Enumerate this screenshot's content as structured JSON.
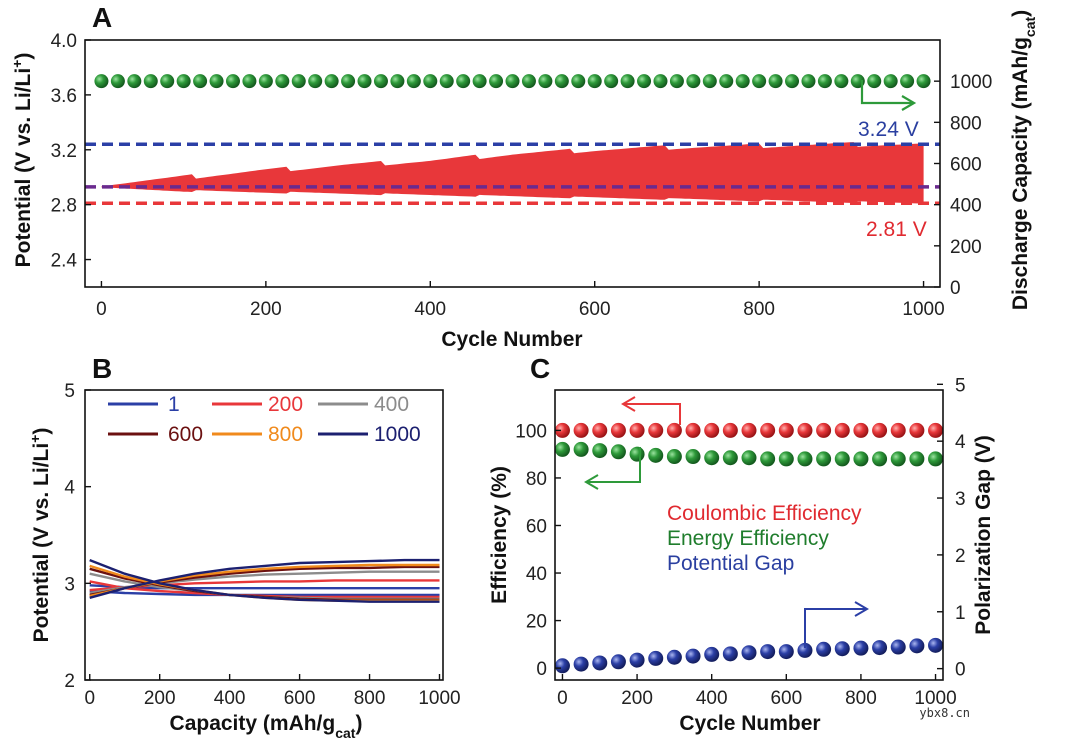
{
  "colors": {
    "green": "#2e9a3a",
    "red": "#e8373a",
    "blue": "#2b3fa6",
    "purple": "#6a2a8e",
    "gray": "#8c8c8c",
    "darkred": "#6b1010",
    "orange": "#f08a1c",
    "navy": "#1c2070",
    "green_text": "#1f7d2c",
    "blue_text": "#2a3fa0",
    "red_text": "#e02a30"
  },
  "watermark": "ybx8.cn",
  "chart_data": [
    {
      "id": "A",
      "panel_label": "A",
      "type": "scatter",
      "xlabel": "Cycle Number",
      "ylabel_left": "Potential (V vs. Li/Li+)",
      "ylabel_right": "Discharge Capacity (mAh/gcat)",
      "xlim": [
        -20,
        1020
      ],
      "ylim_left": [
        2.2,
        4.0
      ],
      "ylim_right": [
        0,
        1200
      ],
      "xticks": [
        "0",
        "200",
        "400",
        "600",
        "800",
        "1000"
      ],
      "yticks_left": [
        "2.4",
        "2.8",
        "3.2",
        "3.6",
        "4.0"
      ],
      "yticks_right": [
        "0",
        "200",
        "400",
        "600",
        "800",
        "1000"
      ],
      "series": [
        {
          "name": "Discharge Capacity",
          "axis": "right",
          "x_start": 0,
          "x_step": 20,
          "count": 51,
          "y": 1000
        }
      ],
      "band": {
        "name": "Potential range",
        "x": [
          0,
          100,
          200,
          300,
          400,
          500,
          600,
          700,
          800,
          900,
          1000
        ],
        "upper": [
          2.95,
          3.0,
          3.05,
          3.09,
          3.12,
          3.17,
          3.2,
          3.22,
          3.23,
          3.24,
          3.24
        ],
        "lower": [
          2.92,
          2.9,
          2.89,
          2.88,
          2.87,
          2.86,
          2.85,
          2.84,
          2.83,
          2.82,
          2.81
        ]
      },
      "hlines": [
        {
          "name": "upper",
          "y": 3.24,
          "label": "3.24 V"
        },
        {
          "name": "lower",
          "y": 2.81,
          "label": "2.81 V"
        },
        {
          "name": "middle",
          "y": 2.93,
          "label": ""
        }
      ]
    },
    {
      "id": "B",
      "panel_label": "B",
      "type": "line",
      "xlabel": "Capacity (mAh/gcat)",
      "ylabel": "Potential (V vs. Li/Li+)",
      "xlim": [
        0,
        1000
      ],
      "ylim": [
        2,
        5
      ],
      "xticks": [
        "0",
        "200",
        "400",
        "600",
        "800",
        "1000"
      ],
      "yticks": [
        "2",
        "3",
        "4",
        "5"
      ],
      "x": [
        0,
        100,
        200,
        300,
        400,
        500,
        600,
        700,
        800,
        900,
        1000
      ],
      "series": [
        {
          "name": "1",
          "discharge": [
            2.92,
            2.9,
            2.89,
            2.88,
            2.88,
            2.88,
            2.88,
            2.88,
            2.88,
            2.88,
            2.88
          ],
          "charge": [
            2.98,
            2.96,
            2.95,
            2.95,
            2.95,
            2.95,
            2.95,
            2.95,
            2.95,
            2.95,
            2.95
          ]
        },
        {
          "name": "200",
          "discharge": [
            3.02,
            2.95,
            2.92,
            2.9,
            2.88,
            2.87,
            2.86,
            2.86,
            2.86,
            2.86,
            2.86
          ],
          "charge": [
            2.93,
            2.96,
            2.98,
            3.0,
            3.01,
            3.02,
            3.02,
            3.03,
            3.03,
            3.03,
            3.03
          ]
        },
        {
          "name": "400",
          "discharge": [
            3.1,
            3.02,
            2.96,
            2.92,
            2.88,
            2.86,
            2.85,
            2.84,
            2.84,
            2.84,
            2.84
          ],
          "charge": [
            2.9,
            2.96,
            3.0,
            3.04,
            3.07,
            3.09,
            3.1,
            3.11,
            3.12,
            3.12,
            3.12
          ]
        },
        {
          "name": "600",
          "discharge": [
            3.15,
            3.05,
            2.98,
            2.92,
            2.88,
            2.86,
            2.84,
            2.83,
            2.83,
            2.83,
            2.83
          ],
          "charge": [
            2.88,
            2.95,
            3.01,
            3.06,
            3.1,
            3.13,
            3.15,
            3.16,
            3.16,
            3.17,
            3.17
          ]
        },
        {
          "name": "800",
          "discharge": [
            3.18,
            3.07,
            2.99,
            2.93,
            2.88,
            2.85,
            2.83,
            2.82,
            2.82,
            2.82,
            2.82
          ],
          "charge": [
            2.87,
            2.95,
            3.02,
            3.08,
            3.12,
            3.15,
            3.17,
            3.18,
            3.19,
            3.19,
            3.19
          ]
        },
        {
          "name": "1000",
          "discharge": [
            3.24,
            3.1,
            3.0,
            2.93,
            2.88,
            2.85,
            2.83,
            2.82,
            2.81,
            2.81,
            2.81
          ],
          "charge": [
            2.85,
            2.95,
            3.03,
            3.1,
            3.15,
            3.18,
            3.21,
            3.22,
            3.23,
            3.24,
            3.24
          ]
        }
      ]
    },
    {
      "id": "C",
      "panel_label": "C",
      "type": "scatter",
      "xlabel": "Cycle Number",
      "ylabel_left": "Efficiency (%)",
      "ylabel_right": "Polarization Gap (V)",
      "xlim": [
        -20,
        1020
      ],
      "ylim_left": [
        -5,
        117
      ],
      "ylim_right": [
        -0.2,
        4.9
      ],
      "xticks": [
        "0",
        "200",
        "400",
        "600",
        "800",
        "1000"
      ],
      "yticks_left": [
        "0",
        "20",
        "40",
        "60",
        "80",
        "100"
      ],
      "yticks_right": [
        "0",
        "1",
        "2",
        "3",
        "4",
        "5"
      ],
      "x": [
        0,
        50,
        100,
        150,
        200,
        250,
        300,
        350,
        400,
        450,
        500,
        550,
        600,
        650,
        700,
        750,
        800,
        850,
        900,
        950,
        1000
      ],
      "series": [
        {
          "name": "Coulombic Efficiency",
          "axis": "left",
          "values": [
            100,
            100,
            100,
            100,
            100,
            100,
            100,
            100,
            100,
            100,
            100,
            100,
            100,
            100,
            100,
            100,
            100,
            100,
            100,
            100,
            100
          ]
        },
        {
          "name": "Energy Efficiency",
          "axis": "left",
          "values": [
            92,
            92,
            91.5,
            91,
            90,
            89.5,
            89,
            89,
            88.5,
            88.5,
            88.5,
            88,
            88,
            88,
            88,
            88,
            88,
            88,
            88,
            88,
            88
          ]
        },
        {
          "name": "Potential Gap",
          "axis": "right",
          "values": [
            0.05,
            0.08,
            0.1,
            0.12,
            0.15,
            0.18,
            0.2,
            0.22,
            0.25,
            0.26,
            0.28,
            0.3,
            0.3,
            0.32,
            0.34,
            0.35,
            0.36,
            0.37,
            0.38,
            0.4,
            0.41
          ]
        }
      ]
    }
  ]
}
